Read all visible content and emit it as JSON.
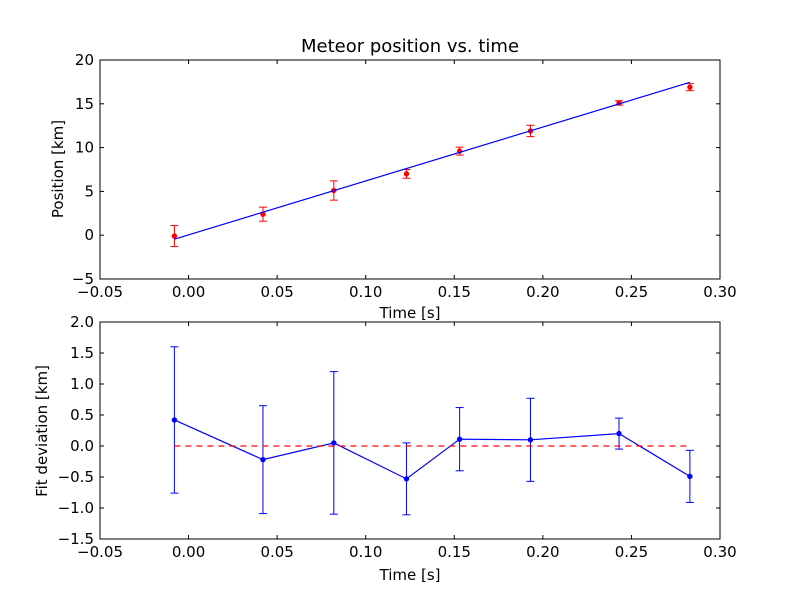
{
  "chart_data": [
    {
      "type": "scatter",
      "title": "Meteor position vs. time",
      "xlabel": "Time [s]",
      "ylabel": "Position [km]",
      "xlim": [
        -0.05,
        0.3
      ],
      "ylim": [
        -5,
        20
      ],
      "xticks": [
        -0.05,
        0.0,
        0.05,
        0.1,
        0.15,
        0.2,
        0.25,
        0.3
      ],
      "xtick_labels": [
        "−0.05",
        "0.00",
        "0.05",
        "0.10",
        "0.15",
        "0.20",
        "0.25",
        "0.30"
      ],
      "yticks": [
        -5,
        0,
        5,
        10,
        15,
        20
      ],
      "ytick_labels": [
        "−5",
        "0",
        "5",
        "10",
        "15",
        "20"
      ],
      "grid": false,
      "series": [
        {
          "style": "errorbar-points",
          "color": "#ff0000",
          "x": [
            -0.008,
            0.042,
            0.082,
            0.123,
            0.153,
            0.193,
            0.243,
            0.283
          ],
          "y": [
            -0.1,
            2.4,
            5.1,
            7.0,
            9.6,
            11.9,
            15.1,
            16.9
          ],
          "yerr": [
            1.2,
            0.8,
            1.1,
            0.5,
            0.45,
            0.65,
            0.25,
            0.4
          ]
        },
        {
          "style": "fit-line",
          "color": "#0000ff",
          "x": [
            -0.008,
            0.283
          ],
          "y": [
            -0.45,
            17.45
          ]
        }
      ]
    },
    {
      "type": "line",
      "title": "",
      "xlabel": "Time [s]",
      "ylabel": "Fit deviation [km]",
      "xlim": [
        -0.05,
        0.3
      ],
      "ylim": [
        -1.5,
        2.0
      ],
      "xticks": [
        -0.05,
        0.0,
        0.05,
        0.1,
        0.15,
        0.2,
        0.25,
        0.3
      ],
      "xtick_labels": [
        "−0.05",
        "0.00",
        "0.05",
        "0.10",
        "0.15",
        "0.20",
        "0.25",
        "0.30"
      ],
      "yticks": [
        -1.5,
        -1.0,
        -0.5,
        0.0,
        0.5,
        1.0,
        1.5,
        2.0
      ],
      "ytick_labels": [
        "−1.5",
        "−1.0",
        "−0.5",
        "0.0",
        "0.5",
        "1.0",
        "1.5",
        "2.0"
      ],
      "grid": false,
      "series": [
        {
          "style": "errorbar-line",
          "color": "#0000ff",
          "x": [
            -0.008,
            0.042,
            0.082,
            0.123,
            0.153,
            0.193,
            0.243,
            0.283
          ],
          "y": [
            0.42,
            -0.22,
            0.05,
            -0.53,
            0.11,
            0.1,
            0.2,
            -0.49
          ],
          "yerr": [
            1.18,
            0.87,
            1.15,
            0.58,
            0.51,
            0.67,
            0.25,
            0.42
          ]
        },
        {
          "style": "reference-dashed",
          "color": "#ff0000",
          "x": [
            -0.008,
            0.283
          ],
          "y": [
            0.0,
            0.0
          ]
        }
      ]
    }
  ]
}
